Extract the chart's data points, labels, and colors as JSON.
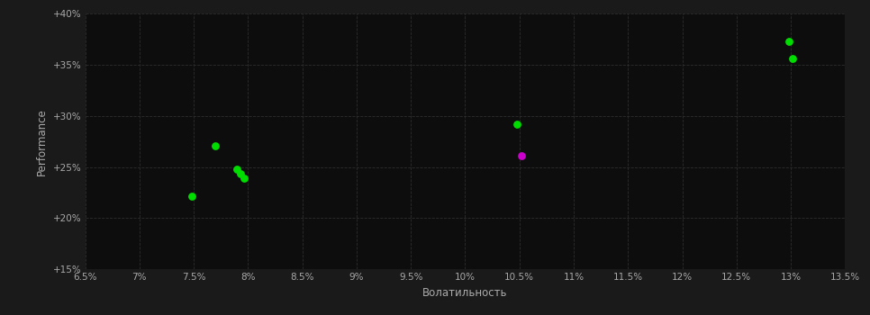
{
  "background_color": "#1a1a1a",
  "plot_bg_color": "#0d0d0d",
  "grid_color": "#2a2a2a",
  "text_color": "#aaaaaa",
  "xlabel": "Волатильность",
  "ylabel": "Performance",
  "xlim": [
    0.065,
    0.135
  ],
  "ylim": [
    0.15,
    0.4
  ],
  "xticks": [
    0.065,
    0.07,
    0.075,
    0.08,
    0.085,
    0.09,
    0.095,
    0.1,
    0.105,
    0.11,
    0.115,
    0.12,
    0.125,
    0.13,
    0.135
  ],
  "yticks": [
    0.15,
    0.2,
    0.25,
    0.3,
    0.35,
    0.4
  ],
  "green_points": [
    [
      0.077,
      0.271
    ],
    [
      0.079,
      0.248
    ],
    [
      0.0793,
      0.243
    ],
    [
      0.0796,
      0.239
    ],
    [
      0.0748,
      0.221
    ],
    [
      0.1048,
      0.292
    ],
    [
      0.1298,
      0.373
    ],
    [
      0.1302,
      0.356
    ]
  ],
  "magenta_points": [
    [
      0.1052,
      0.261
    ]
  ],
  "green_color": "#00dd00",
  "magenta_color": "#cc00cc",
  "marker_size": 28
}
